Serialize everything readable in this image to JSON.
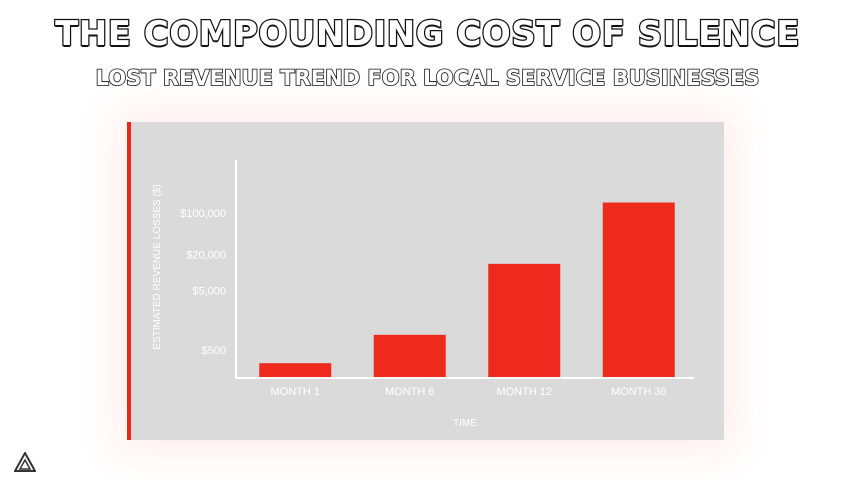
{
  "header": {
    "title": "THE COMPOUNDING COST OF SILENCE",
    "subtitle": "LOST REVENUE TREND FOR LOCAL SERVICE BUSINESSES"
  },
  "logo": {
    "icon": "triangle-logo-icon"
  },
  "colors": {
    "bar": "#ee2a1f",
    "panel": "#dadada",
    "accent": "#e8281e",
    "axis": "#ffffff"
  },
  "chart_data": {
    "type": "bar",
    "categories": [
      "MONTH 1",
      "MONTH 6",
      "MONTH 12",
      "MONTH 36"
    ],
    "values": [
      300,
      900,
      14000,
      150000
    ],
    "yticks": [
      {
        "value": 500,
        "label": "$500"
      },
      {
        "value": 5000,
        "label": "$5,000"
      },
      {
        "value": 20000,
        "label": "$20,000"
      },
      {
        "value": 100000,
        "label": "$100,000"
      }
    ],
    "xlabel": "TIME",
    "ylabel": "ESTIMATED REVENUE LOSSES ($)",
    "yscale": "log",
    "ylim": [
      100,
      1000000
    ],
    "grid": false,
    "legend": "none"
  }
}
